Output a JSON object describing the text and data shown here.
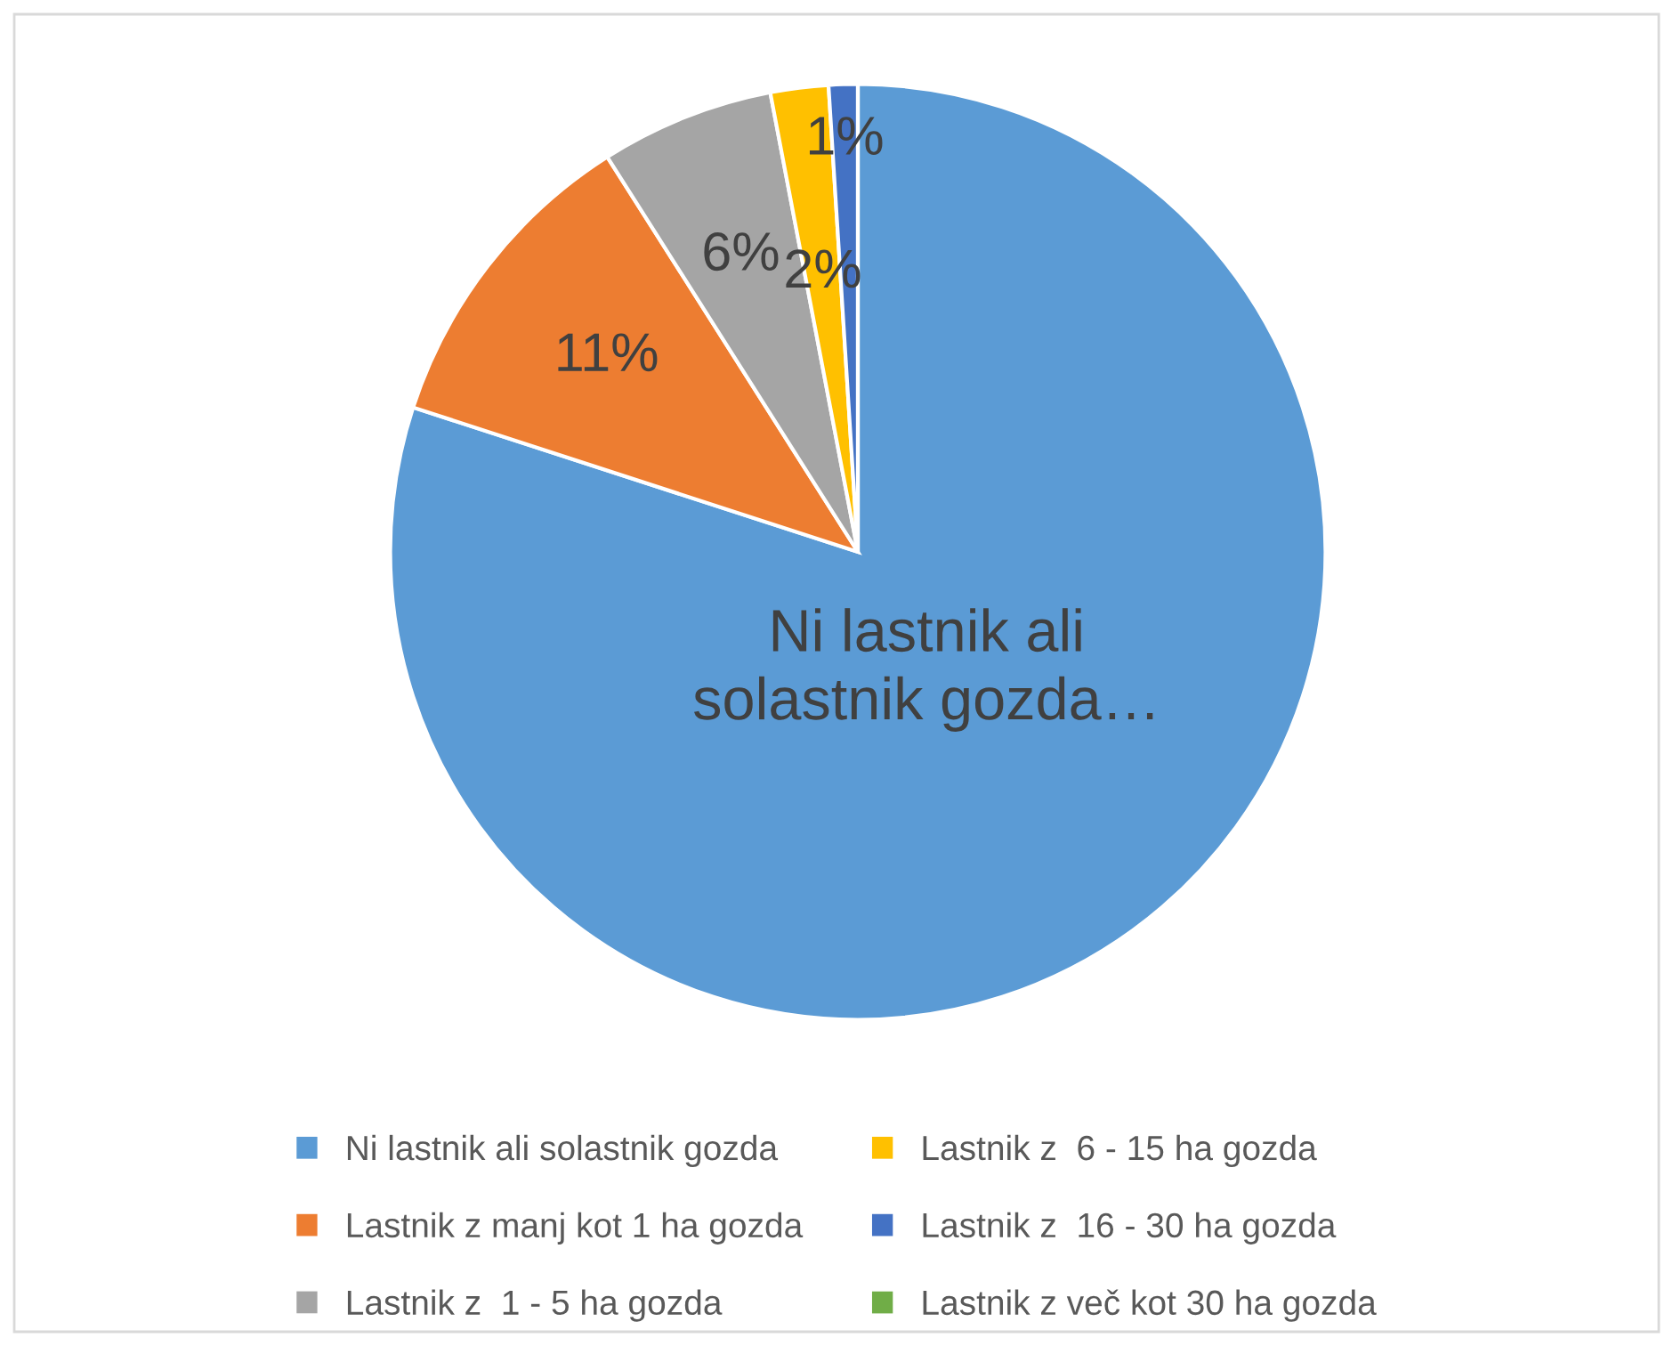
{
  "chart_data": {
    "type": "pie",
    "categories": [
      "Ni lastnik ali solastnik gozda",
      "Lastnik z manj kot 1 ha gozda",
      "Lastnik z  1 - 5 ha gozda",
      "Lastnik z  6 - 15 ha gozda",
      "Lastnik z  16 - 30 ha gozda",
      "Lastnik z več kot 30 ha gozda"
    ],
    "values": [
      80,
      11,
      6,
      2,
      1,
      0
    ],
    "colors": [
      "#5b9bd5",
      "#ed7d31",
      "#a5a5a5",
      "#ffc000",
      "#4472c4",
      "#70ad47"
    ],
    "value_labels": [
      "Ni lastnik ali\nsolastnik gozda…",
      "11%",
      "6%",
      "2%",
      "1%",
      null
    ],
    "legend": "bottom"
  }
}
